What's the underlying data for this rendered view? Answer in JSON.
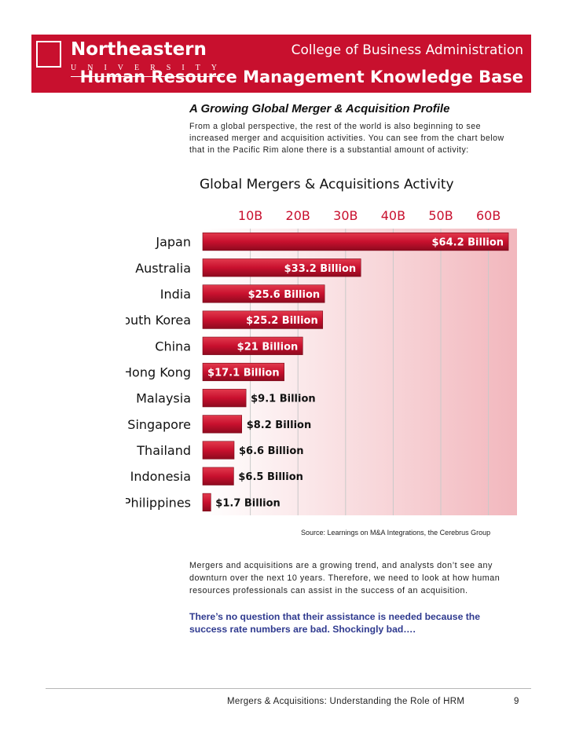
{
  "header": {
    "logo_name": "Northeastern",
    "logo_sub": "UNIVERSITY",
    "college": "College of Business Administration",
    "knowledge_base": "Human Resource Management Knowledge Base"
  },
  "section_title": "A Growing Global Merger & Acquisition Profile",
  "intro": "From a global perspective, the rest of the world is also beginning to see increased merger and acquisition activities. You can see from the chart below that in the Pacific Rim alone there is a substantial amount of activity:",
  "chart_data": {
    "type": "bar",
    "orientation": "horizontal",
    "title": "Global Mergers & Acquisitions Activity",
    "x_ticks": [
      "10B",
      "20B",
      "30B",
      "40B",
      "50B",
      "60B"
    ],
    "xlim": [
      0,
      66
    ],
    "grid": true,
    "categories": [
      "Japan",
      "Australia",
      "India",
      "South Korea",
      "China",
      "Hong Kong",
      "Malaysia",
      "Singapore",
      "Thailand",
      "Indonesia",
      "Philippines"
    ],
    "values": [
      64.2,
      33.2,
      25.6,
      25.2,
      21,
      17.1,
      9.1,
      8.2,
      6.6,
      6.5,
      1.7
    ],
    "value_labels": [
      "$64.2 Billion",
      "$33.2 Billion",
      "$25.6 Billion",
      "$25.2 Billion",
      "$21 Billion",
      "$17.1 Billion",
      "$9.1 Billion",
      "$8.2 Billion",
      "$6.6 Billion",
      "$6.5 Billion",
      "$1.7 Billion"
    ],
    "bar_color": "#c8102e"
  },
  "source": "Source: Learnings on M&A Integrations, the Cerebrus Group",
  "paragraph": "Mergers and acquisitions are a growing trend, and analysts don’t see any downturn over the next 10 years. Therefore, we need to look at how human resources professionals can assist in the success of an acquisition.",
  "callout": "There’s no question that their assistance is needed because the success rate numbers are bad. Shockingly bad….",
  "footer": {
    "text": "Mergers & Acquisitions: Understanding the Role of HRM",
    "page_number": "9"
  }
}
